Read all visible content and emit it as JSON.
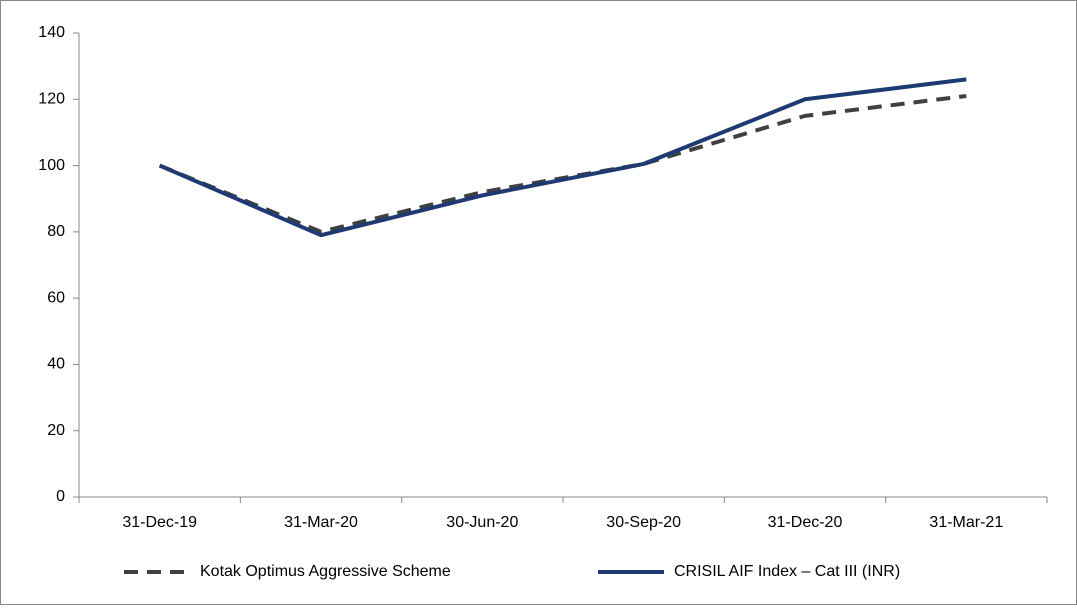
{
  "chart_data": {
    "type": "line",
    "categories": [
      "31-Dec-19",
      "31-Mar-20",
      "30-Jun-20",
      "30-Sep-20",
      "31-Dec-20",
      "31-Mar-21"
    ],
    "series": [
      {
        "name": "Kotak Optimus Aggressive Scheme",
        "color": "#404040",
        "dashed": true,
        "values": [
          100,
          80,
          92,
          100.5,
          115,
          121
        ]
      },
      {
        "name": "CRISIL AIF Index – Cat III (INR)",
        "color": "#1f3a73",
        "dashed": false,
        "values": [
          100,
          79,
          91,
          100.5,
          120,
          126
        ]
      }
    ],
    "ylim": [
      0,
      140
    ],
    "yticks": [
      0,
      20,
      40,
      60,
      80,
      100,
      120,
      140
    ],
    "grid": false,
    "legend": "bottom"
  }
}
